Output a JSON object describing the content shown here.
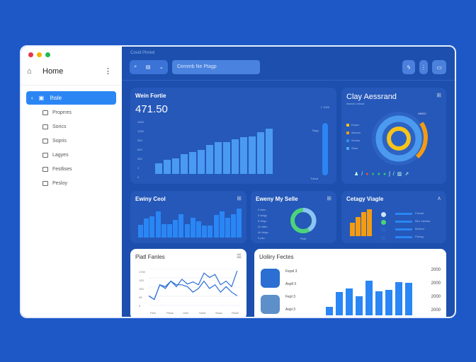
{
  "window": {
    "dots": [
      "#e8344e",
      "#f4b400",
      "#1db954"
    ]
  },
  "sidebar": {
    "home_label": "Home",
    "active_label": "Ihsle",
    "items": [
      {
        "label": "Proprres",
        "icon": "folder-icon"
      },
      {
        "label": "Sorics",
        "icon": "tag-icon"
      },
      {
        "label": "Sopris",
        "icon": "file-icon"
      },
      {
        "label": "Lagyes",
        "icon": "globe-icon"
      },
      {
        "label": "Festlises",
        "icon": "box-icon"
      },
      {
        "label": "Pesloy",
        "icon": "clipboard-icon"
      }
    ]
  },
  "header": {
    "breadcrumb": "Covid Pinred",
    "search_placeholder": "Cemmb Ne Ptagp"
  },
  "colors": {
    "accent": "#2b86f4",
    "background": "#1d58c6",
    "orange": "#f39c12",
    "yellow": "#f7c419",
    "green": "#4cd37a"
  },
  "main_card": {
    "title": "Wein Fortie",
    "value": "471.50",
    "side_label": "1 1000",
    "bar_label_top": "Tlapy",
    "bar_label_bottom": "Tdesd",
    "y_ticks": [
      "1500",
      "1200",
      "900",
      "600",
      "300",
      "1",
      "0"
    ]
  },
  "clay_card": {
    "title": "Clay Aessrand",
    "subtitle": "Aesnd Lnessd",
    "ring_label": "A8000",
    "legend": [
      "Esssn",
      "Aberan",
      "Vinoss",
      "Shue"
    ]
  },
  "row2": {
    "c1_title": "Ewiny Ceol",
    "c2_title": "Eweny My Selle",
    "c2_list": [
      "9 falor",
      "3 sidgy",
      "8 Wigo",
      "Or fater",
      "4b Idrgs",
      "5 pse"
    ],
    "c2_donut_label": "Pstd",
    "c3_title": "Cetagy Viagle",
    "c3_list": [
      "Felohd",
      "Biro Jaretas",
      "Bhnerd",
      "Ficbsg"
    ]
  },
  "line_card": {
    "title": "Piatl Fanles",
    "y_ticks": [
      "1700",
      "125",
      "100",
      "05",
      "0"
    ],
    "x_ticks": [
      "Fteli",
      "Plsds",
      "Ume",
      "Srest",
      "Sloss",
      "Resel"
    ]
  },
  "utility_card": {
    "title": "Uoliiry Fectes",
    "rows": [
      "Fepsl 3",
      "Aspll 3",
      "Fepl 3",
      "Aspl 3"
    ],
    "y_ticks": [
      "2000",
      "2000",
      "2000",
      "2000"
    ]
  },
  "chart_data": [
    {
      "type": "bar",
      "title": "Wein Fortie",
      "values": [
        22,
        28,
        32,
        40,
        44,
        48,
        58,
        64,
        64,
        70,
        74,
        76,
        84,
        92
      ]
    },
    {
      "type": "bar",
      "title": "Ewiny Ceol",
      "values": [
        40,
        58,
        66,
        80,
        42,
        42,
        54,
        72,
        42,
        60,
        50,
        36,
        36,
        70,
        80,
        60,
        72,
        90
      ]
    },
    {
      "type": "bar",
      "title": "Cetagy Viagle",
      "values": [
        50,
        70,
        90,
        100
      ]
    },
    {
      "type": "line",
      "title": "Piatl Fanles",
      "series": [
        {
          "values": [
            30,
            20,
            60,
            50,
            70,
            55,
            75,
            62,
            68,
            60,
            92,
            80,
            88,
            60,
            70,
            55,
            98
          ]
        },
        {
          "values": [
            30,
            20,
            60,
            55,
            70,
            60,
            60,
            55,
            40,
            50,
            70,
            50,
            60,
            40,
            55,
            40,
            30
          ]
        }
      ]
    },
    {
      "type": "bar",
      "title": "Uoliiry Fectes",
      "values": [
        22,
        60,
        70,
        50,
        90,
        62,
        66,
        86,
        84
      ]
    }
  ]
}
